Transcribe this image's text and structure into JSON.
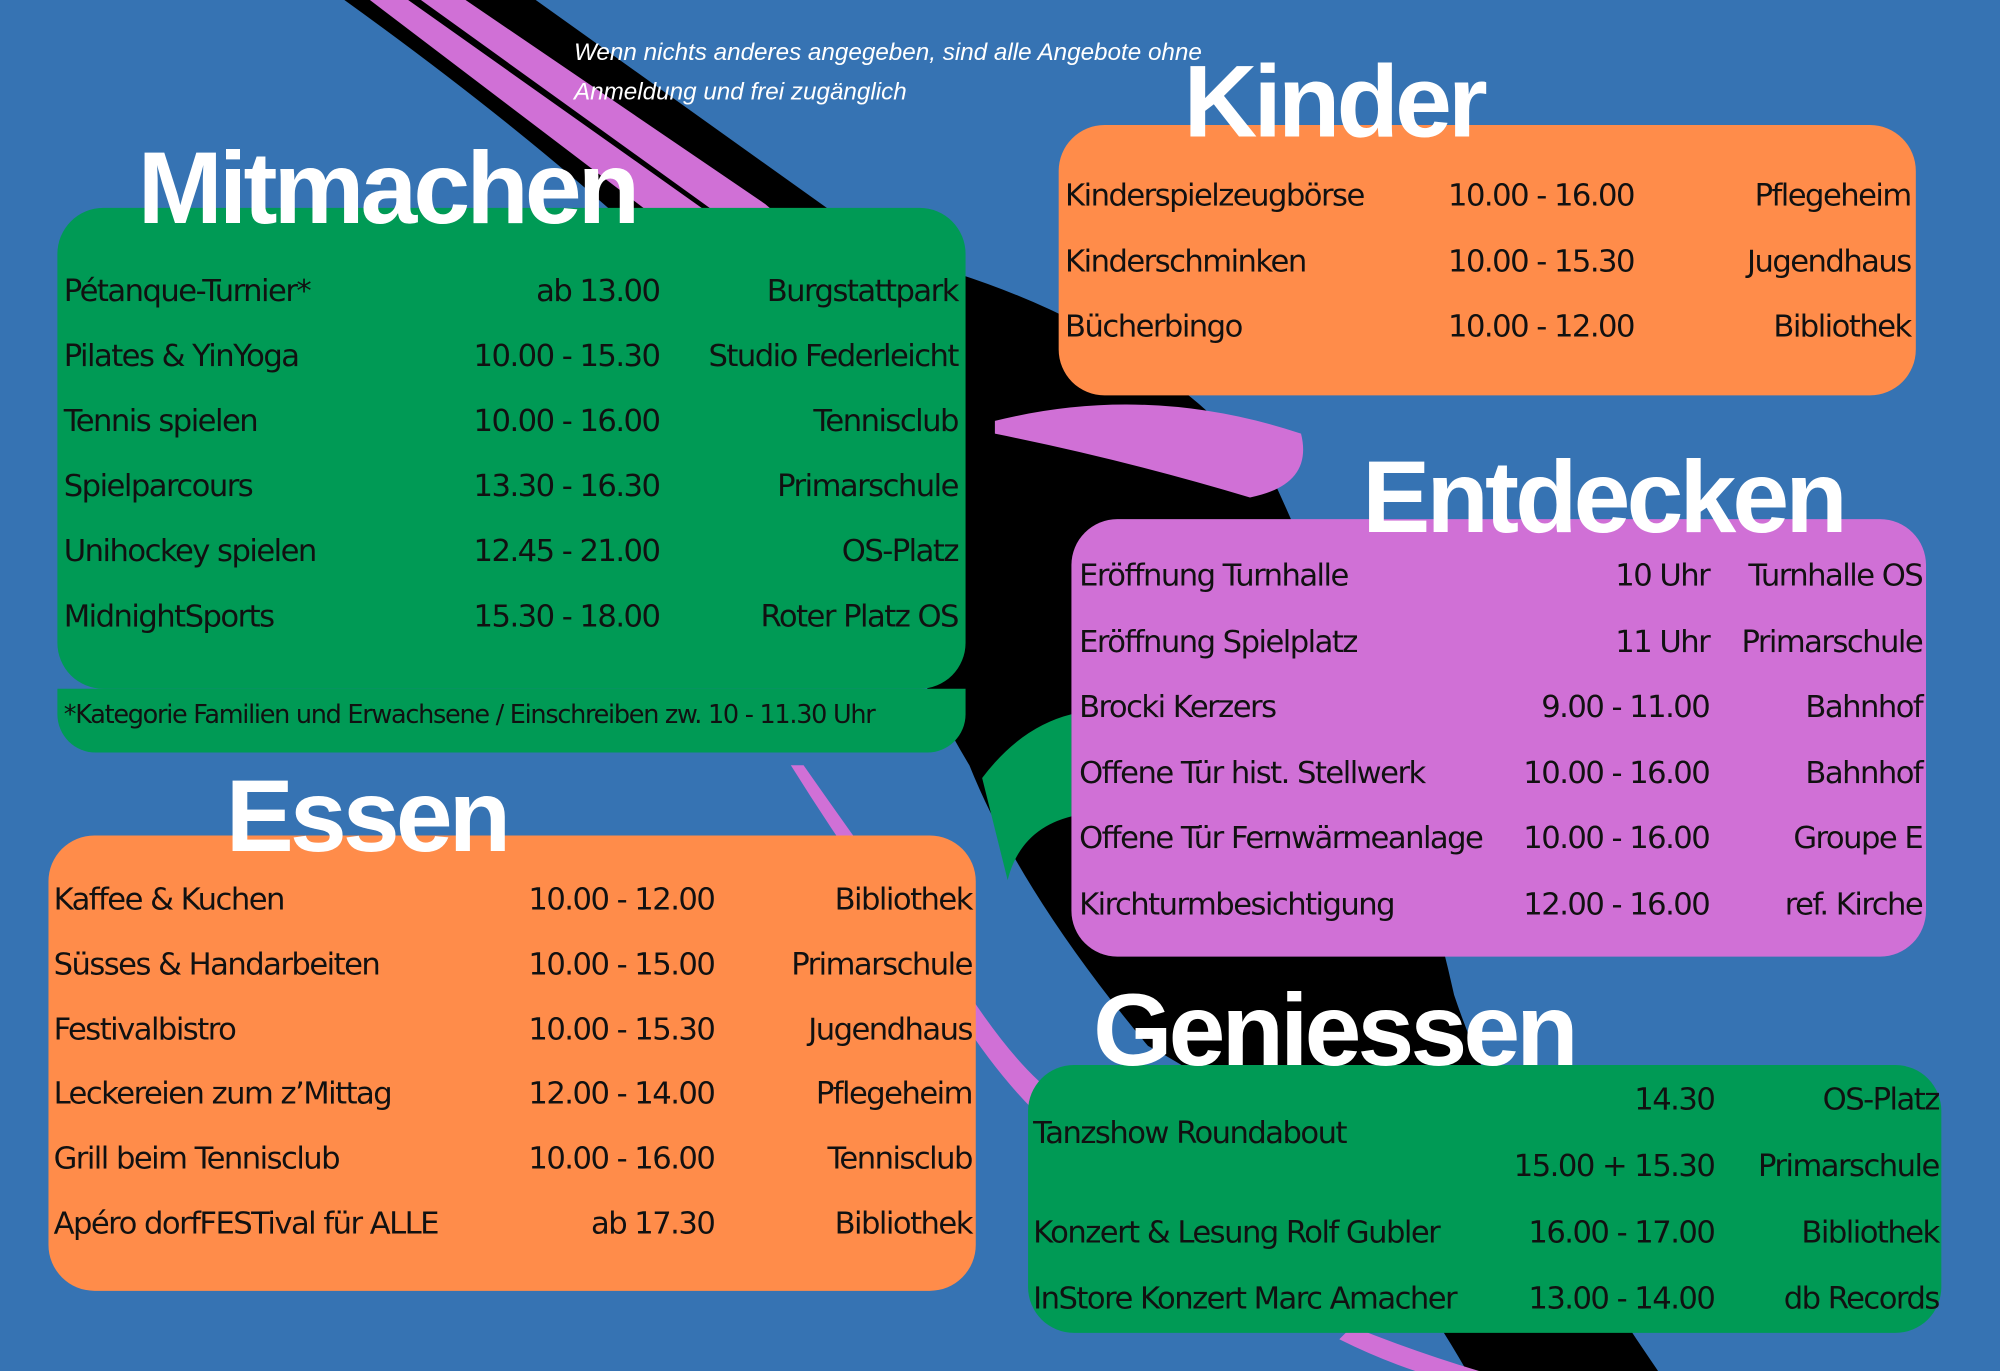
{
  "note": [
    "Wenn nichts anderes angegeben, sind alle Angebote ohne",
    "Anmeldung und frei zugänglich"
  ],
  "sections": [
    {
      "title": "Mitmachen",
      "rows": [
        {
          "activity": "Pétanque-Turnier*",
          "time": "ab 13.00",
          "place": "Burgstattpark"
        },
        {
          "activity": "Pilates & YinYoga",
          "time": "10.00 - 15.30",
          "place": "Studio Federleicht"
        },
        {
          "activity": "Tennis spielen",
          "time": "10.00 - 16.00",
          "place": "Tennisclub"
        },
        {
          "activity": "Spielparcours",
          "time": "13.30 - 16.30",
          "place": "Primarschule"
        },
        {
          "activity": "Unihockey spielen",
          "time": "12.45 - 21.00",
          "place": "OS-Platz"
        },
        {
          "activity": "MidnightSports",
          "time": "15.30 - 18.00",
          "place": "Roter Platz OS"
        }
      ],
      "footnote": "*Kategorie Familien und Erwachsene / Einschreiben zw. 10 - 11.30 Uhr"
    },
    {
      "title": "Kinder",
      "rows": [
        {
          "activity": "Kinderspielzeugbörse",
          "time": "10.00 - 16.00",
          "place": "Pflegeheim"
        },
        {
          "activity": "Kinderschminken",
          "time": "10.00 - 15.30",
          "place": "Jugendhaus"
        },
        {
          "activity": "Bücherbingo",
          "time": "10.00 - 12.00",
          "place": "Bibliothek"
        }
      ]
    },
    {
      "title": "Entdecken",
      "rows": [
        {
          "activity": "Eröffnung Turnhalle",
          "time": "10 Uhr",
          "place": "Turnhalle OS"
        },
        {
          "activity": "Eröffnung Spielplatz",
          "time": "11 Uhr",
          "place": "Primarschule"
        },
        {
          "activity": "Brocki Kerzers",
          "time": "9.00 - 11.00",
          "place": "Bahnhof"
        },
        {
          "activity": "Offene Tür hist. Stellwerk",
          "time": "10.00 - 16.00",
          "place": "Bahnhof"
        },
        {
          "activity": "Offene Tür Fernwärmeanlage",
          "time": "10.00 - 16.00",
          "place": "Groupe E"
        },
        {
          "activity": "Kirchturmbesichtigung",
          "time": "12.00 - 16.00",
          "place": "ref. Kirche"
        }
      ]
    },
    {
      "title": "Essen",
      "rows": [
        {
          "activity": "Kaffee & Kuchen",
          "time": "10.00 - 12.00",
          "place": "Bibliothek"
        },
        {
          "activity": "Süsses & Handarbeiten",
          "time": "10.00 - 15.00",
          "place": "Primarschule"
        },
        {
          "activity": "Festivalbistro",
          "time": "10.00 - 15.30",
          "place": "Jugendhaus"
        },
        {
          "activity": "Leckereien zum z’Mittag",
          "time": "12.00 - 14.00",
          "place": "Pflegeheim"
        },
        {
          "activity": "Grill beim Tennisclub",
          "time": "10.00 - 16.00",
          "place": "Tennisclub"
        },
        {
          "activity": "Apéro dorfFESTival für ALLE",
          "time": "ab 17.30",
          "place": "Bibliothek"
        }
      ]
    },
    {
      "title": "Geniessen",
      "rows": [
        {
          "activity": "Tanzshow Roundabout",
          "time": [
            "14.30",
            "15.00 + 15.30"
          ],
          "place": [
            "OS-Platz",
            "Primarschule"
          ]
        },
        {
          "activity": "Konzert & Lesung Rolf Gubler",
          "time": "16.00 - 17.00",
          "place": "Bibliothek"
        },
        {
          "activity": "InStore Konzert Marc Amacher",
          "time": "13.00 - 14.00",
          "place": "db Records"
        }
      ]
    }
  ]
}
